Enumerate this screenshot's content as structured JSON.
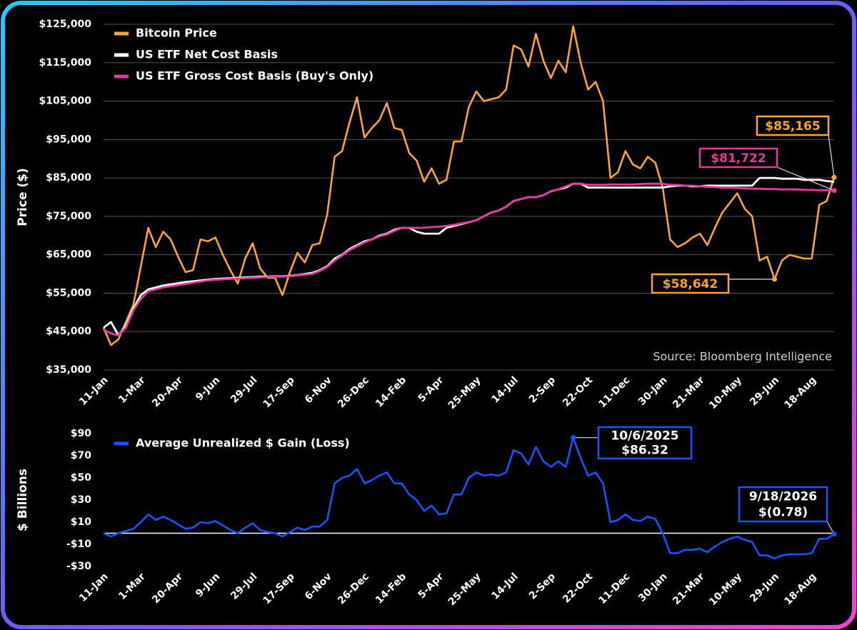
{
  "chart_data": [
    {
      "type": "line",
      "ylabel": "Price ($)",
      "source": "Source: Bloomberg Intelligence",
      "grid": true,
      "categories": [
        "11-Jan",
        null,
        null,
        null,
        null,
        "1-Mar",
        null,
        null,
        null,
        null,
        "20-Apr",
        null,
        null,
        null,
        null,
        "9-Jun",
        null,
        null,
        null,
        null,
        "29-Jul",
        null,
        null,
        null,
        null,
        "17-Sep",
        null,
        null,
        null,
        null,
        "6-Nov",
        null,
        null,
        null,
        null,
        "26-Dec",
        null,
        null,
        null,
        null,
        "14-Feb",
        null,
        null,
        null,
        null,
        "5-Apr",
        null,
        null,
        null,
        null,
        "25-May",
        null,
        null,
        null,
        null,
        "14-Jul",
        null,
        null,
        null,
        null,
        "2-Sep",
        null,
        null,
        null,
        null,
        "22-Oct",
        null,
        null,
        null,
        null,
        "11-Dec",
        null,
        null,
        null,
        null,
        "30-Jan",
        null,
        null,
        null,
        null,
        "21-Mar",
        null,
        null,
        null,
        null,
        "10-May",
        null,
        null,
        null,
        null,
        "29-Jun",
        null,
        null,
        null,
        null,
        "18-Aug",
        null,
        null,
        null
      ],
      "ylim": [
        35000,
        125000
      ],
      "yticks": [
        {
          "value": 35000,
          "label": "$35,000"
        },
        {
          "value": 45000,
          "label": "$45,000"
        },
        {
          "value": 55000,
          "label": "$55,000"
        },
        {
          "value": 65000,
          "label": "$65,000"
        },
        {
          "value": 75000,
          "label": "$75,000"
        },
        {
          "value": 85000,
          "label": "$85,000"
        },
        {
          "value": 95000,
          "label": "$95,000"
        },
        {
          "value": 105000,
          "label": "$105,000"
        },
        {
          "value": 115000,
          "label": "$115,000"
        },
        {
          "value": 125000,
          "label": "$125,000"
        }
      ],
      "series": [
        {
          "name": "Bitcoin Price",
          "color": "#f7a53a",
          "values": [
            46000,
            41500,
            43000,
            47500,
            52000,
            62000,
            72000,
            67000,
            71000,
            69000,
            64500,
            60500,
            61000,
            69000,
            68500,
            69500,
            65000,
            61000,
            57500,
            64000,
            68000,
            61500,
            59000,
            59000,
            54500,
            60500,
            65500,
            63000,
            67500,
            68000,
            75500,
            90500,
            92000,
            99500,
            106000,
            95500,
            98000,
            100000,
            104500,
            98000,
            97500,
            91500,
            89500,
            84000,
            87500,
            83500,
            84500,
            94500,
            94500,
            103500,
            107500,
            105000,
            105500,
            106000,
            108000,
            119500,
            118500,
            114000,
            122500,
            115500,
            111000,
            115500,
            112500,
            124500,
            115000,
            108000,
            110000,
            105000,
            85000,
            86500,
            92000,
            88500,
            87500,
            90500,
            89000,
            82500,
            69000,
            67000,
            68000,
            69500,
            70500,
            67500,
            72000,
            76000,
            78500,
            81000,
            77000,
            75000,
            63500,
            64500,
            58642,
            63500,
            65000,
            64500,
            64000,
            64000,
            78000,
            79000,
            85165
          ],
          "value_labels": [
            null,
            null,
            null,
            null,
            null,
            null,
            null,
            null,
            null,
            null,
            null,
            null,
            null,
            null,
            null,
            null,
            null,
            null,
            null,
            null,
            null,
            null,
            null,
            null,
            null,
            null,
            null,
            null,
            null,
            null,
            null,
            null,
            null,
            null,
            null,
            null,
            null,
            null,
            null,
            null,
            null,
            null,
            null,
            null,
            null,
            null,
            null,
            null,
            null,
            null,
            null,
            null,
            null,
            null,
            null,
            null,
            null,
            null,
            null,
            null,
            null,
            null,
            null,
            null,
            null,
            null,
            null,
            null,
            null,
            null,
            null,
            null,
            null,
            null,
            null,
            null,
            null,
            null,
            null,
            null,
            null,
            null,
            null,
            null,
            null,
            null,
            null,
            null,
            null,
            null,
            "$58,642",
            null,
            null,
            null,
            null,
            null,
            null,
            null,
            "$85,165"
          ]
        },
        {
          "name": "US ETF Net Cost Basis",
          "color": "#ffffff",
          "values": [
            46000,
            47500,
            44000,
            46500,
            51000,
            54500,
            56000,
            56500,
            57000,
            57300,
            57600,
            57900,
            58100,
            58300,
            58500,
            58700,
            58800,
            58900,
            59000,
            59100,
            59200,
            59300,
            59300,
            59400,
            59400,
            59500,
            59700,
            60000,
            60300,
            61000,
            62000,
            64000,
            65000,
            66500,
            67500,
            68500,
            69000,
            70000,
            70500,
            71500,
            72000,
            72000,
            71000,
            70500,
            70500,
            70500,
            72000,
            72500,
            73000,
            73500,
            74000,
            75000,
            76000,
            76500,
            77500,
            79000,
            79500,
            80000,
            80000,
            80500,
            81500,
            82000,
            82500,
            83500,
            83500,
            82500,
            82500,
            82500,
            82500,
            82500,
            82500,
            82500,
            82500,
            82500,
            82500,
            82500,
            82800,
            83000,
            83000,
            82800,
            82800,
            83000,
            83000,
            83000,
            83000,
            83000,
            83000,
            83000,
            85000,
            85000,
            85000,
            84800,
            84800,
            84800,
            84500,
            84500,
            84500,
            84200,
            84000
          ]
        },
        {
          "name": "US ETF Gross Cost Basis (Buy's Only)",
          "color": "#e23c9a",
          "values": [
            45500,
            44500,
            44000,
            46000,
            50500,
            53500,
            55500,
            56000,
            56500,
            56800,
            57100,
            57400,
            57700,
            58000,
            58300,
            58500,
            58600,
            58700,
            58800,
            58900,
            59000,
            59100,
            59200,
            59300,
            59300,
            59400,
            59600,
            59800,
            60000,
            60800,
            61800,
            63500,
            64800,
            66200,
            67200,
            68200,
            69000,
            69800,
            70300,
            71200,
            72000,
            72000,
            72000,
            72000,
            72200,
            72300,
            72500,
            72800,
            73200,
            73500,
            74000,
            75000,
            76000,
            76500,
            77500,
            79000,
            79500,
            80000,
            80000,
            80500,
            81500,
            82000,
            82800,
            83500,
            83500,
            83200,
            83200,
            83200,
            83300,
            83300,
            83300,
            83300,
            83400,
            83500,
            83500,
            83500,
            83200,
            83200,
            83000,
            83000,
            82800,
            82700,
            82600,
            82500,
            82500,
            82400,
            82300,
            82200,
            82200,
            82100,
            82100,
            82000,
            82000,
            82000,
            81900,
            81900,
            81800,
            81800,
            81722
          ],
          "value_labels": [
            null,
            null,
            null,
            null,
            null,
            null,
            null,
            null,
            null,
            null,
            null,
            null,
            null,
            null,
            null,
            null,
            null,
            null,
            null,
            null,
            null,
            null,
            null,
            null,
            null,
            null,
            null,
            null,
            null,
            null,
            null,
            null,
            null,
            null,
            null,
            null,
            null,
            null,
            null,
            null,
            null,
            null,
            null,
            null,
            null,
            null,
            null,
            null,
            null,
            null,
            null,
            null,
            null,
            null,
            null,
            null,
            null,
            null,
            null,
            null,
            null,
            null,
            null,
            null,
            null,
            null,
            null,
            null,
            null,
            null,
            null,
            null,
            null,
            null,
            null,
            null,
            null,
            null,
            null,
            null,
            null,
            null,
            null,
            null,
            null,
            null,
            null,
            null,
            null,
            null,
            null,
            null,
            null,
            null,
            null,
            null,
            null,
            null,
            "$81,722"
          ]
        }
      ]
    },
    {
      "type": "line",
      "ylabel": "$ Billions",
      "zero_line": true,
      "categories": [
        "11-Jan",
        null,
        null,
        null,
        null,
        "1-Mar",
        null,
        null,
        null,
        null,
        "20-Apr",
        null,
        null,
        null,
        null,
        "9-Jun",
        null,
        null,
        null,
        null,
        "29-Jul",
        null,
        null,
        null,
        null,
        "17-Sep",
        null,
        null,
        null,
        null,
        "6-Nov",
        null,
        null,
        null,
        null,
        "26-Dec",
        null,
        null,
        null,
        null,
        "14-Feb",
        null,
        null,
        null,
        null,
        "5-Apr",
        null,
        null,
        null,
        null,
        "25-May",
        null,
        null,
        null,
        null,
        "14-Jul",
        null,
        null,
        null,
        null,
        "2-Sep",
        null,
        null,
        null,
        null,
        "22-Oct",
        null,
        null,
        null,
        null,
        "11-Dec",
        null,
        null,
        null,
        null,
        "30-Jan",
        null,
        null,
        null,
        null,
        "21-Mar",
        null,
        null,
        null,
        null,
        "10-May",
        null,
        null,
        null,
        null,
        "29-Jun",
        null,
        null,
        null,
        null,
        "18-Aug",
        null,
        null,
        null
      ],
      "ylim": [
        -30,
        90
      ],
      "yticks": [
        {
          "value": -30,
          "label": "-$30"
        },
        {
          "value": -10,
          "label": "-$10"
        },
        {
          "value": 10,
          "label": "$10"
        },
        {
          "value": 30,
          "label": "$30"
        },
        {
          "value": 50,
          "label": "$50"
        },
        {
          "value": 70,
          "label": "$70"
        },
        {
          "value": 90,
          "label": "$90"
        }
      ],
      "series": [
        {
          "name": "Average Unrealized $ Gain (Loss)",
          "color": "#1f4fff",
          "values": [
            0,
            -3,
            0,
            2,
            4,
            10,
            17,
            12,
            15,
            12,
            8,
            4,
            5,
            10,
            9,
            11,
            7,
            3,
            0,
            5,
            9,
            3,
            1,
            0,
            -3,
            1,
            5,
            3,
            6,
            6,
            12,
            45,
            50,
            52,
            58,
            45,
            48,
            52,
            55,
            45,
            45,
            35,
            30,
            20,
            25,
            17,
            18,
            35,
            35,
            50,
            55,
            52,
            53,
            52,
            55,
            75,
            72,
            62,
            78,
            65,
            60,
            65,
            60,
            86.32,
            68,
            52,
            55,
            45,
            10,
            12,
            17,
            12,
            11,
            15,
            13,
            0,
            -18,
            -18,
            -15,
            -15,
            -14,
            -17,
            -12,
            -8,
            -5,
            -3,
            -6,
            -8,
            -20,
            -20,
            -23,
            -20,
            -19,
            -19,
            -19,
            -18,
            -5,
            -5,
            -0.78
          ],
          "value_labels": [
            null,
            null,
            null,
            null,
            null,
            null,
            null,
            null,
            null,
            null,
            null,
            null,
            null,
            null,
            null,
            null,
            null,
            null,
            null,
            null,
            null,
            null,
            null,
            null,
            null,
            null,
            null,
            null,
            null,
            null,
            null,
            null,
            null,
            null,
            null,
            null,
            null,
            null,
            null,
            null,
            null,
            null,
            null,
            null,
            null,
            null,
            null,
            null,
            null,
            null,
            null,
            null,
            null,
            null,
            null,
            null,
            null,
            null,
            null,
            null,
            null,
            null,
            null,
            "$86.32",
            null,
            null,
            null,
            null,
            null,
            null,
            null,
            null,
            null,
            null,
            null,
            null,
            null,
            null,
            null,
            null,
            null,
            null,
            null,
            null,
            null,
            null,
            null,
            null,
            null,
            null,
            null,
            null,
            null,
            null,
            null,
            null,
            null,
            null,
            "$(0.78)"
          ],
          "date_labels": [
            null,
            null,
            null,
            null,
            null,
            null,
            null,
            null,
            null,
            null,
            null,
            null,
            null,
            null,
            null,
            null,
            null,
            null,
            null,
            null,
            null,
            null,
            null,
            null,
            null,
            null,
            null,
            null,
            null,
            null,
            null,
            null,
            null,
            null,
            null,
            null,
            null,
            null,
            null,
            null,
            null,
            null,
            null,
            null,
            null,
            null,
            null,
            null,
            null,
            null,
            null,
            null,
            null,
            null,
            null,
            null,
            null,
            null,
            null,
            null,
            null,
            null,
            null,
            "10/6/2025",
            null,
            null,
            null,
            null,
            null,
            null,
            null,
            null,
            null,
            null,
            null,
            null,
            null,
            null,
            null,
            null,
            null,
            null,
            null,
            null,
            null,
            null,
            null,
            null,
            null,
            null,
            null,
            null,
            null,
            null,
            null,
            null,
            null,
            null,
            "9/18/2026"
          ]
        }
      ]
    }
  ]
}
